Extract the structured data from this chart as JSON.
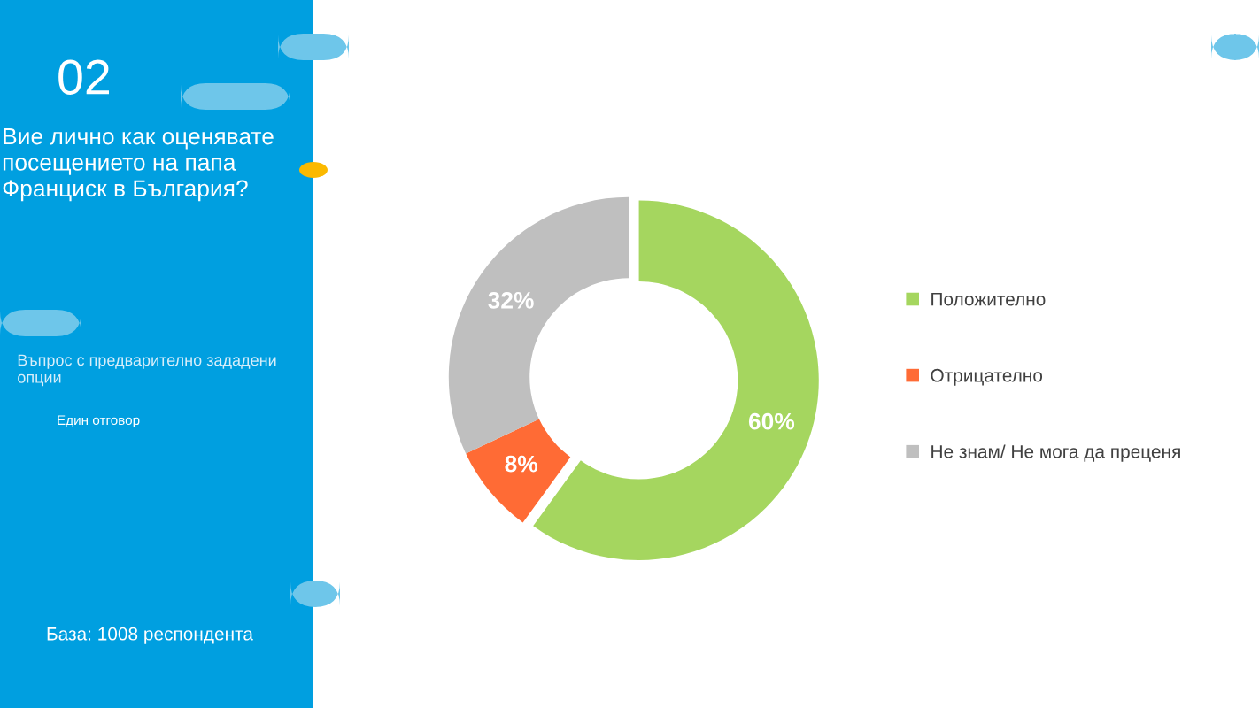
{
  "chart_data": {
    "type": "donut",
    "title": "Вие лично как оценявате посещението на папа Франциск в България?",
    "subtitle": "Въпрос с предварително зададени опции",
    "annotations": [
      "02",
      "Един отговор",
      "База: 1008 респондента"
    ],
    "categories": [
      "Положително",
      "Отрицателно",
      "Не знам/ Не мога да преценя"
    ],
    "values": [
      60,
      8,
      32
    ],
    "colors": [
      "#a5d65f",
      "#ff6b35",
      "#bfbfbf"
    ],
    "value_labels": [
      "60%",
      "8%",
      "32%"
    ],
    "legend": "right"
  }
}
